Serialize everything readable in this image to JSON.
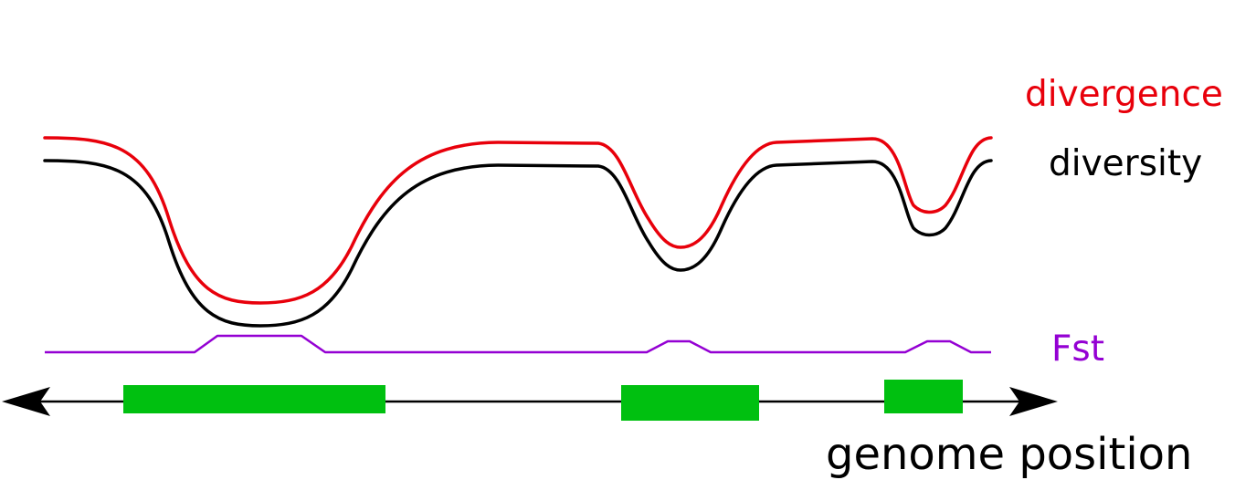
{
  "labels": {
    "divergence": "divergence",
    "diversity": "diversity",
    "fst": "Fst",
    "genome_position": "genome position"
  },
  "colors": {
    "divergence": "#e8000b",
    "diversity": "#000000",
    "fst": "#9400d3",
    "region": "#00c010",
    "axis": "#000000"
  },
  "elements": {
    "divergence_curve": "divergence-curve",
    "diversity_curve": "diversity-curve",
    "fst_curve": "fst-curve",
    "genome_axis": "genome-position-axis",
    "regions": [
      "selected-region-1",
      "selected-region-2",
      "selected-region-3"
    ]
  }
}
